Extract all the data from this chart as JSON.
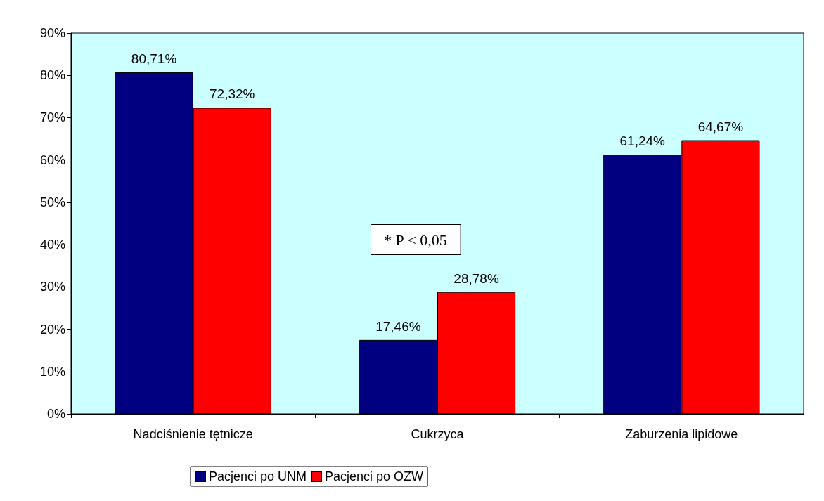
{
  "chart_data": {
    "type": "bar",
    "categories": [
      "Nadciśnienie tętnicze",
      "Cukrzyca",
      "Zaburzenia lipidowe"
    ],
    "series": [
      {
        "name": "Pacjenci po UNM",
        "color": "#000080",
        "values": [
          80.71,
          17.46,
          61.24
        ],
        "value_labels": [
          "80,71%",
          "17,46%",
          "61,24%"
        ]
      },
      {
        "name": "Pacjenci po OZW",
        "color": "#ff0000",
        "values": [
          72.32,
          28.78,
          64.67
        ],
        "value_labels": [
          "72,32%",
          "28,78%",
          "64,67%"
        ]
      }
    ],
    "ylim": [
      0,
      90
    ],
    "yticks": [
      {
        "value": 0,
        "label": "0%"
      },
      {
        "value": 10,
        "label": "10%"
      },
      {
        "value": 20,
        "label": "20%"
      },
      {
        "value": 30,
        "label": "30%"
      },
      {
        "value": 40,
        "label": "40%"
      },
      {
        "value": 50,
        "label": "50%"
      },
      {
        "value": 60,
        "label": "60%"
      },
      {
        "value": 70,
        "label": "70%"
      },
      {
        "value": 80,
        "label": "80%"
      },
      {
        "value": 90,
        "label": "90%"
      }
    ],
    "annotations": [
      "* P < 0,05"
    ],
    "grid": false,
    "legend": "bottom"
  }
}
